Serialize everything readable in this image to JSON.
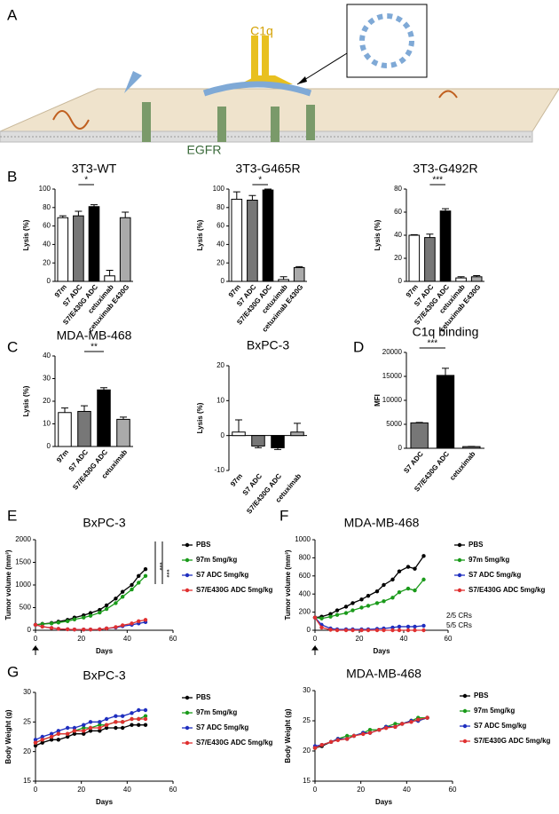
{
  "panels": [
    "A",
    "B",
    "C",
    "D",
    "E",
    "F",
    "G"
  ],
  "diagram": {
    "labels": [
      "C1q",
      "EGFR"
    ]
  },
  "chart_data": [
    {
      "type": "bar",
      "title": "3T3-WT",
      "ylabel": "Lysis (%)",
      "categories": [
        "97m",
        "S7 ADC",
        "S7/E430G ADC",
        "cetuximab",
        "cetuximab E430G"
      ],
      "values": [
        69,
        71,
        81,
        6,
        69
      ],
      "errors": [
        2,
        5,
        2,
        6,
        6
      ],
      "colors": [
        "#ffffff",
        "#777777",
        "#000000",
        "#ffffff",
        "#aaaaaa"
      ],
      "ylim": [
        0,
        100
      ],
      "yticks": [
        0,
        20,
        40,
        60,
        80,
        100
      ],
      "annotations": [
        "*"
      ]
    },
    {
      "type": "bar",
      "title": "3T3-G465R",
      "ylabel": "Lysis (%)",
      "categories": [
        "97m",
        "S7 ADC",
        "S7/E430G ADC",
        "cetuximab",
        "cetuximab E430G"
      ],
      "values": [
        89,
        88,
        99,
        2,
        15
      ],
      "errors": [
        8,
        5,
        1,
        3,
        1
      ],
      "colors": [
        "#ffffff",
        "#777777",
        "#000000",
        "#ffffff",
        "#aaaaaa"
      ],
      "ylim": [
        0,
        100
      ],
      "yticks": [
        0,
        20,
        40,
        60,
        80,
        100
      ],
      "annotations": [
        "*"
      ]
    },
    {
      "type": "bar",
      "title": "3T3-G492R",
      "ylabel": "Lysis (%)",
      "categories": [
        "97m",
        "S7 ADC",
        "S7/E430G ADC",
        "cetuximab",
        "cetuximab E430G"
      ],
      "values": [
        40,
        38,
        61,
        3,
        4
      ],
      "errors": [
        0.5,
        3,
        2,
        1,
        1
      ],
      "colors": [
        "#ffffff",
        "#777777",
        "#000000",
        "#ffffff",
        "#aaaaaa"
      ],
      "ylim": [
        0,
        80
      ],
      "yticks": [
        0,
        20,
        40,
        60,
        80
      ],
      "annotations": [
        "***"
      ]
    },
    {
      "type": "bar",
      "title": "MDA-MB-468",
      "ylabel": "Lysis (%)",
      "categories": [
        "97m",
        "S7 ADC",
        "S7/E430G ADC",
        "cetuximab"
      ],
      "values": [
        15,
        15.5,
        25,
        12
      ],
      "errors": [
        2,
        2.5,
        1,
        1
      ],
      "colors": [
        "#ffffff",
        "#777777",
        "#000000",
        "#aaaaaa"
      ],
      "ylim": [
        0,
        40
      ],
      "yticks": [
        0,
        10,
        20,
        30,
        40
      ],
      "annotations": [
        "**"
      ]
    },
    {
      "type": "bar",
      "title": "BxPC-3",
      "ylabel": "Lysis (%)",
      "categories": [
        "97m",
        "S7 ADC",
        "S7/E430G ADC",
        "cetuximab"
      ],
      "values": [
        1,
        -3,
        -3.5,
        1
      ],
      "errors": [
        3.5,
        0.5,
        0.5,
        2.5
      ],
      "colors": [
        "#ffffff",
        "#777777",
        "#000000",
        "#aaaaaa"
      ],
      "ylim": [
        -10,
        20
      ],
      "yticks": [
        -10,
        0,
        10,
        20
      ],
      "annotations": []
    },
    {
      "type": "bar",
      "title": "C1q binding",
      "ylabel": "MFI",
      "categories": [
        "S7 ADC",
        "S7/E430G ADC",
        "cetuximab"
      ],
      "values": [
        5300,
        15200,
        350
      ],
      "errors": [
        100,
        1500,
        50
      ],
      "colors": [
        "#777777",
        "#000000",
        "#777777"
      ],
      "ylim": [
        0,
        20000
      ],
      "yticks": [
        0,
        5000,
        10000,
        15000,
        20000
      ],
      "annotations": [
        "***"
      ]
    },
    {
      "type": "line",
      "title": "BxPC-3",
      "xlabel": "Days",
      "ylabel": "Tumor volume (mm³)",
      "x": [
        0,
        3,
        7,
        10,
        14,
        17,
        21,
        24,
        28,
        31,
        35,
        38,
        42,
        45,
        48
      ],
      "xlim": [
        0,
        60
      ],
      "xticks": [
        0,
        20,
        40,
        60
      ],
      "ylim": [
        0,
        2000
      ],
      "yticks": [
        0,
        500,
        1000,
        1500,
        2000
      ],
      "annotations": [
        "***",
        "***"
      ],
      "series": [
        {
          "name": "PBS",
          "color": "#000000",
          "values": [
            120,
            140,
            160,
            190,
            230,
            280,
            330,
            380,
            450,
            550,
            700,
            850,
            1000,
            1200,
            1350
          ]
        },
        {
          "name": "97m 5mg/kg",
          "color": "#1a9a1a",
          "values": [
            120,
            135,
            150,
            170,
            200,
            240,
            280,
            320,
            390,
            470,
            600,
            740,
            900,
            1050,
            1200
          ]
        },
        {
          "name": "S7 ADC 5mg/kg",
          "color": "#1f2fbf",
          "values": [
            120,
            80,
            50,
            30,
            20,
            15,
            15,
            15,
            20,
            40,
            60,
            90,
            120,
            150,
            180
          ]
        },
        {
          "name": "S7/E430G ADC 5mg/kg",
          "color": "#e03030",
          "values": [
            120,
            80,
            50,
            30,
            20,
            15,
            15,
            15,
            20,
            40,
            70,
            110,
            150,
            200,
            230
          ]
        }
      ]
    },
    {
      "type": "line",
      "title": "MDA-MB-468",
      "xlabel": "Days",
      "ylabel": "Tumor volume (mm³)",
      "x": [
        0,
        3,
        7,
        10,
        14,
        17,
        21,
        24,
        28,
        31,
        35,
        38,
        42,
        45,
        49
      ],
      "xlim": [
        0,
        60
      ],
      "xticks": [
        0,
        20,
        40,
        60
      ],
      "ylim": [
        0,
        1000
      ],
      "yticks": [
        0,
        200,
        400,
        600,
        800,
        1000
      ],
      "annotations": [
        "2/5 CRs",
        "5/5 CRs"
      ],
      "series": [
        {
          "name": "PBS",
          "color": "#000000",
          "values": [
            140,
            150,
            180,
            220,
            260,
            300,
            340,
            380,
            430,
            500,
            560,
            650,
            700,
            680,
            820
          ]
        },
        {
          "name": "97m 5mg/kg",
          "color": "#1a9a1a",
          "values": [
            140,
            130,
            150,
            170,
            190,
            220,
            250,
            270,
            300,
            320,
            360,
            420,
            460,
            440,
            560
          ]
        },
        {
          "name": "S7 ADC 5mg/kg",
          "color": "#1f2fbf",
          "values": [
            140,
            60,
            20,
            10,
            10,
            10,
            10,
            10,
            15,
            20,
            30,
            40,
            40,
            40,
            50
          ]
        },
        {
          "name": "S7/E430G ADC 5mg/kg",
          "color": "#e03030",
          "values": [
            140,
            30,
            5,
            0,
            0,
            0,
            0,
            0,
            0,
            0,
            0,
            0,
            0,
            0,
            0
          ]
        }
      ]
    },
    {
      "type": "line",
      "title": "BxPC-3",
      "xlabel": "Days",
      "ylabel": "Body Weight (g)",
      "x": [
        0,
        3,
        7,
        10,
        14,
        17,
        21,
        24,
        28,
        31,
        35,
        38,
        42,
        45,
        48
      ],
      "xlim": [
        0,
        60
      ],
      "xticks": [
        0,
        20,
        40,
        60
      ],
      "ylim": [
        15,
        30
      ],
      "yticks": [
        15,
        20,
        25,
        30
      ],
      "annotations": [],
      "series": [
        {
          "name": "PBS",
          "color": "#000000",
          "values": [
            21,
            21.5,
            22,
            22,
            22.5,
            23,
            23,
            23.5,
            23.5,
            24,
            24,
            24,
            24.5,
            24.5,
            24.5
          ]
        },
        {
          "name": "97m 5mg/kg",
          "color": "#1a9a1a",
          "values": [
            21.5,
            22,
            22.5,
            23,
            23,
            23.5,
            24,
            24,
            24.5,
            24.5,
            25,
            25,
            25.5,
            25.5,
            26
          ]
        },
        {
          "name": "S7 ADC 5mg/kg",
          "color": "#1f2fbf",
          "values": [
            22,
            22.5,
            23,
            23.5,
            24,
            24,
            24.5,
            25,
            25,
            25.5,
            26,
            26,
            26.5,
            27,
            27
          ]
        },
        {
          "name": "S7/E430G ADC 5mg/kg",
          "color": "#e03030",
          "values": [
            21.5,
            22,
            22.5,
            23,
            23,
            23.5,
            23.5,
            24,
            24,
            24.5,
            25,
            25,
            25.5,
            25.5,
            25.5
          ]
        }
      ]
    },
    {
      "type": "line",
      "title": "MDA-MB-468",
      "xlabel": "Days",
      "ylabel": "Body Weight (g)",
      "x": [
        0,
        3,
        7,
        10,
        14,
        17,
        21,
        24,
        28,
        31,
        35,
        38,
        42,
        45,
        49
      ],
      "xlim": [
        0,
        60
      ],
      "xticks": [
        0,
        20,
        40,
        60
      ],
      "ylim": [
        15,
        30
      ],
      "yticks": [
        15,
        20,
        25,
        30
      ],
      "annotations": [],
      "series": [
        {
          "name": "PBS",
          "color": "#000000",
          "values": [
            20.5,
            20.8,
            21.5,
            22,
            22,
            22.5,
            23,
            23,
            23.5,
            24,
            24,
            24.5,
            25,
            25,
            25.5
          ]
        },
        {
          "name": "97m 5mg/kg",
          "color": "#1a9a1a",
          "values": [
            20.5,
            21,
            21.5,
            22,
            22.5,
            22.5,
            23,
            23.5,
            23.5,
            24,
            24.5,
            24.5,
            25,
            25.5,
            25.5
          ]
        },
        {
          "name": "S7 ADC 5mg/kg",
          "color": "#1f2fbf",
          "values": [
            20.8,
            21,
            21.5,
            22,
            22,
            22.5,
            23,
            23,
            23.5,
            24,
            24,
            24.5,
            25,
            25,
            25.5
          ]
        },
        {
          "name": "S7/E430G ADC 5mg/kg",
          "color": "#e03030",
          "values": [
            20.5,
            21,
            21.5,
            21.8,
            22,
            22.5,
            22.8,
            23,
            23.5,
            23.8,
            24,
            24.5,
            24.8,
            25.2,
            25.5
          ]
        }
      ]
    }
  ]
}
